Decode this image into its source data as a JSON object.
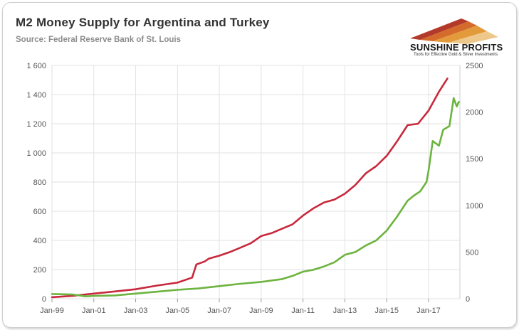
{
  "chart_data": {
    "type": "line",
    "title": "M2 Money Supply for Argentina and Turkey",
    "subtitle": "Source: Federal Reserve Bank of St. Louis",
    "x_ticks": [
      "Jan-99",
      "Jan-01",
      "Jan-03",
      "Jan-05",
      "Jan-07",
      "Jan-09",
      "Jan-11",
      "Jan-13",
      "Jan-15",
      "Jan-17"
    ],
    "xlim": [
      1999.0,
      2018.5
    ],
    "y_left": {
      "ylim": [
        0,
        1600
      ],
      "ticks": [
        "0",
        "200",
        "400",
        "600",
        "800",
        "1 000",
        "1 200",
        "1 400",
        "1 600"
      ]
    },
    "y_right": {
      "ylim": [
        0,
        2500
      ],
      "ticks": [
        "0",
        "500",
        "1000",
        "1500",
        "2000",
        "2500"
      ]
    },
    "grid": "vertical and horizontal",
    "series": [
      {
        "color": "#c8283c",
        "axis": "left",
        "points": [
          [
            1999.0,
            10
          ],
          [
            2000.0,
            20
          ],
          [
            2001.0,
            35
          ],
          [
            2002.0,
            50
          ],
          [
            2003.0,
            65
          ],
          [
            2004.0,
            90
          ],
          [
            2005.0,
            110
          ],
          [
            2005.7,
            145
          ],
          [
            2005.9,
            235
          ],
          [
            2006.3,
            255
          ],
          [
            2006.5,
            275
          ],
          [
            2007.0,
            295
          ],
          [
            2007.5,
            320
          ],
          [
            2008.0,
            350
          ],
          [
            2008.5,
            380
          ],
          [
            2009.0,
            430
          ],
          [
            2009.5,
            450
          ],
          [
            2010.0,
            480
          ],
          [
            2010.5,
            510
          ],
          [
            2011.0,
            570
          ],
          [
            2011.5,
            620
          ],
          [
            2012.0,
            660
          ],
          [
            2012.5,
            680
          ],
          [
            2013.0,
            720
          ],
          [
            2013.5,
            780
          ],
          [
            2014.0,
            860
          ],
          [
            2014.5,
            910
          ],
          [
            2015.0,
            980
          ],
          [
            2015.5,
            1080
          ],
          [
            2016.0,
            1190
          ],
          [
            2016.5,
            1200
          ],
          [
            2017.0,
            1290
          ],
          [
            2017.5,
            1420
          ],
          [
            2017.9,
            1510
          ]
        ]
      },
      {
        "color": "#6db33f",
        "axis": "right",
        "points": [
          [
            1999.0,
            50
          ],
          [
            2000.0,
            45
          ],
          [
            2000.6,
            25
          ],
          [
            2001.0,
            30
          ],
          [
            2002.0,
            35
          ],
          [
            2003.0,
            55
          ],
          [
            2004.0,
            75
          ],
          [
            2005.0,
            95
          ],
          [
            2006.0,
            110
          ],
          [
            2007.0,
            135
          ],
          [
            2008.0,
            160
          ],
          [
            2009.0,
            180
          ],
          [
            2010.0,
            210
          ],
          [
            2010.5,
            245
          ],
          [
            2011.0,
            290
          ],
          [
            2011.5,
            310
          ],
          [
            2012.0,
            345
          ],
          [
            2012.5,
            390
          ],
          [
            2013.0,
            470
          ],
          [
            2013.5,
            500
          ],
          [
            2014.0,
            570
          ],
          [
            2014.5,
            625
          ],
          [
            2015.0,
            730
          ],
          [
            2015.5,
            880
          ],
          [
            2016.0,
            1050
          ],
          [
            2016.3,
            1105
          ],
          [
            2016.6,
            1150
          ],
          [
            2016.9,
            1250
          ],
          [
            2017.0,
            1370
          ],
          [
            2017.2,
            1690
          ],
          [
            2017.5,
            1640
          ],
          [
            2017.7,
            1810
          ],
          [
            2018.0,
            1850
          ],
          [
            2018.2,
            2150
          ],
          [
            2018.35,
            2060
          ],
          [
            2018.45,
            2110
          ]
        ]
      }
    ]
  },
  "logo": {
    "name": "SUNSHINE PROFITS",
    "tagline": "Tools for Effective Gold & Silver Investments"
  }
}
